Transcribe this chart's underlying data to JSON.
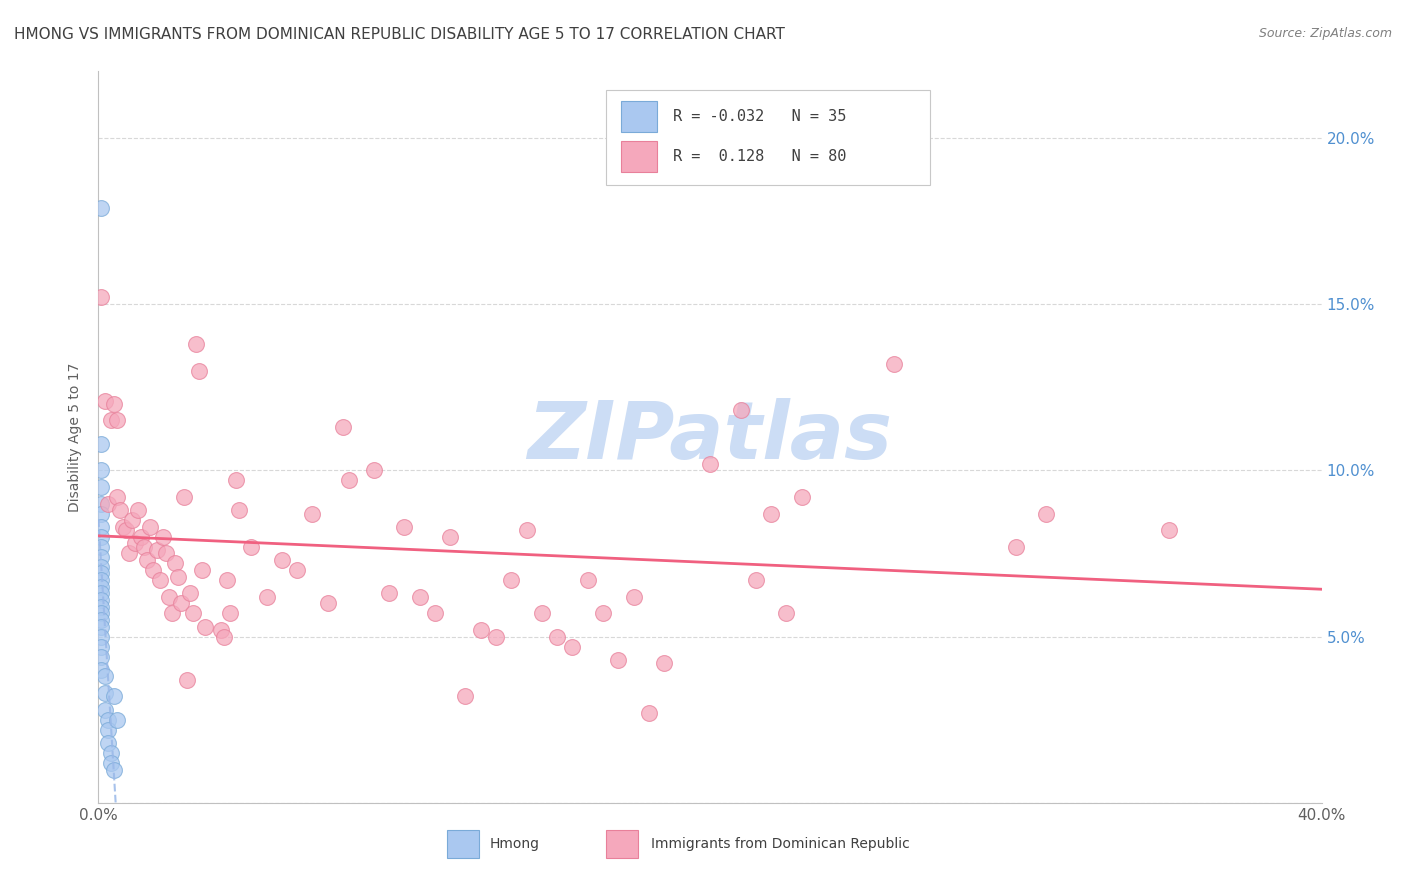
{
  "title": "HMONG VS IMMIGRANTS FROM DOMINICAN REPUBLIC DISABILITY AGE 5 TO 17 CORRELATION CHART",
  "source": "Source: ZipAtlas.com",
  "ylabel": "Disability Age 5 to 17",
  "xlim": [
    0.0,
    0.4
  ],
  "ylim": [
    0.0,
    0.22
  ],
  "xticks": [
    0.0,
    0.1,
    0.2,
    0.3,
    0.4
  ],
  "xtick_labels": [
    "0.0%",
    "",
    "",
    "",
    "40.0%"
  ],
  "yticks": [
    0.0,
    0.05,
    0.1,
    0.15,
    0.2
  ],
  "ytick_labels_left": [
    "",
    "",
    "",
    "",
    ""
  ],
  "ytick_labels_right": [
    "",
    "5.0%",
    "10.0%",
    "15.0%",
    "20.0%"
  ],
  "legend_r_hmong": "-0.032",
  "legend_n_hmong": "35",
  "legend_r_dr": "0.128",
  "legend_n_dr": "80",
  "hmong_color": "#aac8f0",
  "dr_color": "#f5a8bc",
  "hmong_edge_color": "#7aaad8",
  "dr_edge_color": "#e8809a",
  "hmong_line_color": "#99b8e8",
  "dr_line_color": "#f06080",
  "watermark": "ZIPatlas",
  "watermark_color": "#ccddf5",
  "background_color": "#ffffff",
  "grid_color": "#d8d8d8",
  "title_color": "#404040",
  "right_axis_color": "#5090d0",
  "hmong_scatter": [
    [
      0.001,
      0.179
    ],
    [
      0.001,
      0.108
    ],
    [
      0.001,
      0.1
    ],
    [
      0.001,
      0.095
    ],
    [
      0.001,
      0.09
    ],
    [
      0.001,
      0.087
    ],
    [
      0.001,
      0.083
    ],
    [
      0.001,
      0.08
    ],
    [
      0.001,
      0.077
    ],
    [
      0.001,
      0.074
    ],
    [
      0.001,
      0.071
    ],
    [
      0.001,
      0.069
    ],
    [
      0.001,
      0.067
    ],
    [
      0.001,
      0.065
    ],
    [
      0.001,
      0.063
    ],
    [
      0.001,
      0.061
    ],
    [
      0.001,
      0.059
    ],
    [
      0.001,
      0.057
    ],
    [
      0.001,
      0.055
    ],
    [
      0.001,
      0.053
    ],
    [
      0.001,
      0.05
    ],
    [
      0.001,
      0.047
    ],
    [
      0.001,
      0.044
    ],
    [
      0.001,
      0.04
    ],
    [
      0.002,
      0.038
    ],
    [
      0.002,
      0.033
    ],
    [
      0.002,
      0.028
    ],
    [
      0.003,
      0.025
    ],
    [
      0.003,
      0.022
    ],
    [
      0.003,
      0.018
    ],
    [
      0.004,
      0.015
    ],
    [
      0.004,
      0.012
    ],
    [
      0.005,
      0.01
    ],
    [
      0.005,
      0.032
    ],
    [
      0.006,
      0.025
    ]
  ],
  "dr_scatter": [
    [
      0.001,
      0.152
    ],
    [
      0.002,
      0.121
    ],
    [
      0.003,
      0.09
    ],
    [
      0.004,
      0.115
    ],
    [
      0.005,
      0.12
    ],
    [
      0.006,
      0.115
    ],
    [
      0.006,
      0.092
    ],
    [
      0.007,
      0.088
    ],
    [
      0.008,
      0.083
    ],
    [
      0.009,
      0.082
    ],
    [
      0.01,
      0.075
    ],
    [
      0.011,
      0.085
    ],
    [
      0.012,
      0.078
    ],
    [
      0.013,
      0.088
    ],
    [
      0.014,
      0.08
    ],
    [
      0.015,
      0.077
    ],
    [
      0.016,
      0.073
    ],
    [
      0.017,
      0.083
    ],
    [
      0.018,
      0.07
    ],
    [
      0.019,
      0.076
    ],
    [
      0.02,
      0.067
    ],
    [
      0.021,
      0.08
    ],
    [
      0.022,
      0.075
    ],
    [
      0.023,
      0.062
    ],
    [
      0.024,
      0.057
    ],
    [
      0.025,
      0.072
    ],
    [
      0.026,
      0.068
    ],
    [
      0.027,
      0.06
    ],
    [
      0.028,
      0.092
    ],
    [
      0.029,
      0.037
    ],
    [
      0.03,
      0.063
    ],
    [
      0.031,
      0.057
    ],
    [
      0.032,
      0.138
    ],
    [
      0.033,
      0.13
    ],
    [
      0.034,
      0.07
    ],
    [
      0.035,
      0.053
    ],
    [
      0.04,
      0.052
    ],
    [
      0.041,
      0.05
    ],
    [
      0.042,
      0.067
    ],
    [
      0.043,
      0.057
    ],
    [
      0.045,
      0.097
    ],
    [
      0.046,
      0.088
    ],
    [
      0.05,
      0.077
    ],
    [
      0.055,
      0.062
    ],
    [
      0.06,
      0.073
    ],
    [
      0.065,
      0.07
    ],
    [
      0.07,
      0.087
    ],
    [
      0.075,
      0.06
    ],
    [
      0.08,
      0.113
    ],
    [
      0.082,
      0.097
    ],
    [
      0.09,
      0.1
    ],
    [
      0.095,
      0.063
    ],
    [
      0.1,
      0.083
    ],
    [
      0.105,
      0.062
    ],
    [
      0.11,
      0.057
    ],
    [
      0.115,
      0.08
    ],
    [
      0.12,
      0.032
    ],
    [
      0.125,
      0.052
    ],
    [
      0.13,
      0.05
    ],
    [
      0.135,
      0.067
    ],
    [
      0.14,
      0.082
    ],
    [
      0.145,
      0.057
    ],
    [
      0.15,
      0.05
    ],
    [
      0.155,
      0.047
    ],
    [
      0.16,
      0.067
    ],
    [
      0.165,
      0.057
    ],
    [
      0.17,
      0.043
    ],
    [
      0.175,
      0.062
    ],
    [
      0.18,
      0.027
    ],
    [
      0.185,
      0.042
    ],
    [
      0.2,
      0.102
    ],
    [
      0.21,
      0.118
    ],
    [
      0.215,
      0.067
    ],
    [
      0.22,
      0.087
    ],
    [
      0.225,
      0.057
    ],
    [
      0.23,
      0.092
    ],
    [
      0.26,
      0.132
    ],
    [
      0.3,
      0.077
    ],
    [
      0.31,
      0.087
    ],
    [
      0.35,
      0.082
    ]
  ],
  "hmong_trend_x": [
    0.0,
    0.4
  ],
  "dr_trend_x": [
    0.0,
    0.4
  ]
}
